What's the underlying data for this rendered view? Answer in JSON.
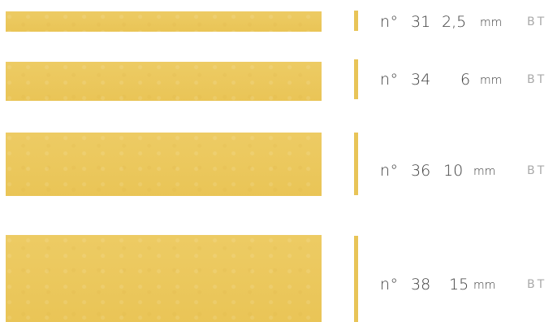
{
  "pasta_sizes": [
    {
      "prefix": "n°",
      "number": "31",
      "width": "2,5",
      "unit": "mm",
      "tag": "BT"
    },
    {
      "prefix": "n°",
      "number": "34",
      "width": "6",
      "unit": "mm",
      "tag": "BT"
    },
    {
      "prefix": "n°",
      "number": "36",
      "width": "10",
      "unit": "mm",
      "tag": "BT"
    },
    {
      "prefix": "n°",
      "number": "38",
      "width": "15",
      "unit": "mm",
      "tag": "BT"
    }
  ],
  "colors": {
    "pasta": "#ecc85a",
    "pasta_edge": "#e8c457",
    "text": "#3d3d3d",
    "tag": "#a9a9a9"
  }
}
